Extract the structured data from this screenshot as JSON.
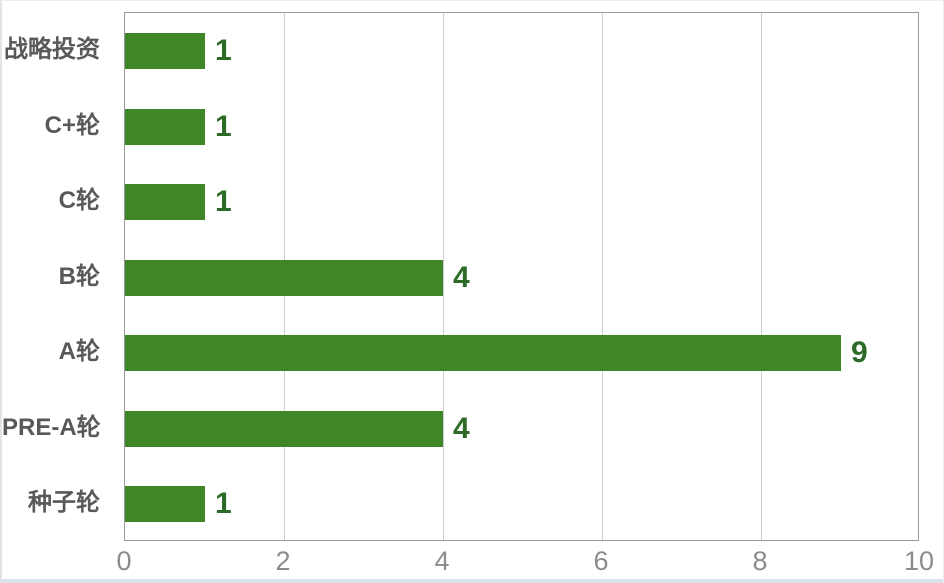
{
  "chart_data": {
    "type": "bar",
    "orientation": "horizontal",
    "title": "",
    "xlabel": "",
    "ylabel": "",
    "categories": [
      "战略投资",
      "C+轮",
      "C轮",
      "B轮",
      "A轮",
      "PRE-A轮",
      "种子轮"
    ],
    "values": [
      1,
      1,
      1,
      4,
      9,
      4,
      1
    ],
    "xlim": [
      0,
      10
    ],
    "x_ticks": [
      0,
      2,
      4,
      6,
      8,
      10
    ],
    "grid": true,
    "legend": false,
    "colors": {
      "bar": "#3e8627",
      "value_label": "#2e6b28",
      "category_label": "#595959",
      "tick_label": "#8c8c8c",
      "plot_border": "#9b9b9b",
      "gridline": "#cfcfcf"
    }
  }
}
